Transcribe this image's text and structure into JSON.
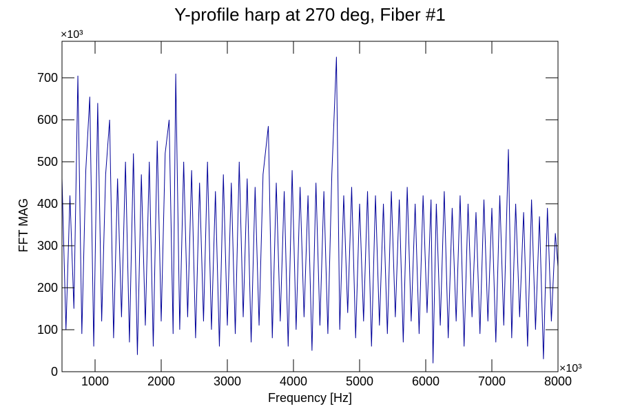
{
  "chart_data": {
    "type": "line",
    "title": "Y-profile harp at 270 deg, Fiber #1",
    "x_label": "Frequency [Hz]",
    "y_label": "FFT MAG",
    "x_multiplier": "×10³",
    "y_multiplier": "×10³",
    "color": "#000099",
    "xlim": [
      500,
      8000
    ],
    "xticks": [
      1000,
      2000,
      3000,
      4000,
      5000,
      6000,
      7000,
      8000
    ],
    "ylim": [
      0,
      787
    ],
    "yticks": [
      0,
      100,
      200,
      300,
      400,
      500,
      600,
      700
    ],
    "x": [
      500,
      560,
      620,
      680,
      740,
      800,
      860,
      920,
      980,
      1040,
      1100,
      1160,
      1220,
      1280,
      1340,
      1400,
      1460,
      1520,
      1580,
      1640,
      1700,
      1760,
      1820,
      1880,
      1940,
      2000,
      2060,
      2120,
      2180,
      2220,
      2280,
      2340,
      2400,
      2460,
      2520,
      2580,
      2640,
      2700,
      2760,
      2820,
      2880,
      2940,
      3000,
      3060,
      3120,
      3180,
      3240,
      3300,
      3360,
      3420,
      3480,
      3540,
      3620,
      3680,
      3740,
      3800,
      3860,
      3920,
      3980,
      4040,
      4100,
      4160,
      4220,
      4280,
      4340,
      4400,
      4460,
      4520,
      4580,
      4650,
      4700,
      4760,
      4820,
      4880,
      4940,
      5000,
      5060,
      5120,
      5180,
      5240,
      5300,
      5360,
      5420,
      5480,
      5540,
      5600,
      5660,
      5720,
      5780,
      5840,
      5900,
      5960,
      6020,
      6080,
      6110,
      6160,
      6220,
      6280,
      6340,
      6400,
      6460,
      6520,
      6580,
      6640,
      6700,
      6760,
      6820,
      6880,
      6940,
      7000,
      7060,
      7120,
      7180,
      7250,
      7300,
      7360,
      7420,
      7480,
      7540,
      7600,
      7660,
      7720,
      7780,
      7840,
      7900,
      7960,
      8000
    ],
    "values": [
      460,
      100,
      420,
      150,
      705,
      90,
      480,
      655,
      60,
      640,
      120,
      470,
      600,
      80,
      460,
      130,
      500,
      70,
      520,
      40,
      470,
      110,
      500,
      60,
      550,
      120,
      520,
      600,
      90,
      710,
      100,
      500,
      130,
      480,
      80,
      450,
      120,
      500,
      100,
      430,
      60,
      470,
      110,
      450,
      90,
      500,
      130,
      460,
      70,
      440,
      110,
      470,
      585,
      80,
      450,
      120,
      430,
      60,
      480,
      100,
      440,
      130,
      420,
      50,
      450,
      110,
      430,
      90,
      470,
      750,
      100,
      420,
      140,
      440,
      80,
      400,
      120,
      430,
      60,
      420,
      110,
      400,
      90,
      430,
      130,
      410,
      70,
      440,
      120,
      400,
      90,
      420,
      140,
      410,
      20,
      400,
      110,
      430,
      80,
      390,
      120,
      420,
      60,
      400,
      130,
      380,
      90,
      410,
      120,
      390,
      70,
      420,
      110,
      530,
      80,
      400,
      130,
      380,
      60,
      410,
      100,
      370,
      30,
      390,
      120,
      330,
      250
    ]
  }
}
